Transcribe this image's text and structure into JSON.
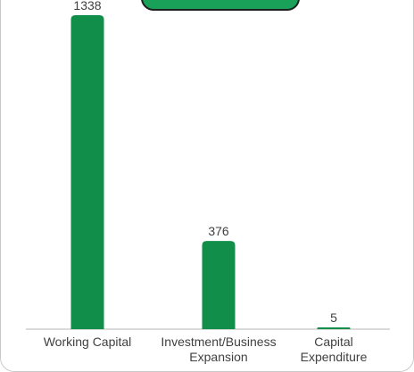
{
  "colors": {
    "bar": "#118f4a",
    "banner": "#19a15a",
    "axis": "#b5b5b5",
    "text": "#404040"
  },
  "chart_data": {
    "type": "bar",
    "categories": [
      [
        "Working Capital"
      ],
      [
        "Investment/Business",
        "Expansion"
      ],
      [
        "Capital",
        "Expenditure"
      ]
    ],
    "values": [
      1338,
      376,
      5
    ],
    "data_labels": [
      "1338",
      "376",
      "5"
    ],
    "title": "",
    "xlabel": "",
    "ylabel": "",
    "ylim": [
      0,
      1338
    ],
    "grid": false,
    "legend": "none"
  }
}
